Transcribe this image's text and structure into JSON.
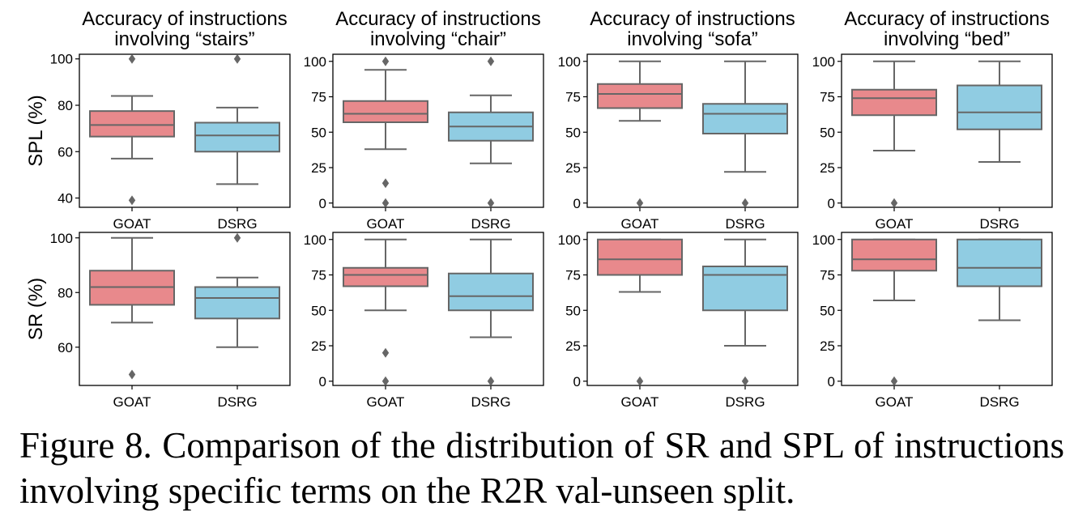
{
  "chart_data": {
    "type": "box",
    "categories": [
      "GOAT",
      "DSRG"
    ],
    "colors": {
      "GOAT": "#E8898C",
      "DSRG": "#90CCE2",
      "outline": "#666666"
    },
    "columns": [
      {
        "title_line1": "Accuracy of instructions",
        "title_line2": "involving “stairs”"
      },
      {
        "title_line1": "Accuracy of instructions",
        "title_line2": "involving “chair”"
      },
      {
        "title_line1": "Accuracy of instructions",
        "title_line2": "involving “sofa”"
      },
      {
        "title_line1": "Accuracy of instructions",
        "title_line2": "involving “bed”"
      }
    ],
    "rows": [
      {
        "ylabel": "SPL (%)",
        "panels": [
          {
            "ylim": [
              36,
              102
            ],
            "yticks": [
              "40",
              "60",
              "80",
              "100"
            ],
            "tick_values": [
              40,
              60,
              80,
              100
            ],
            "boxes": [
              {
                "q1": 66.5,
                "median": 71.5,
                "q3": 77.5,
                "whislo": 57,
                "whishi": 84,
                "fliers": [
                  39,
                  100
                ]
              },
              {
                "q1": 60,
                "median": 67,
                "q3": 72.5,
                "whislo": 46,
                "whishi": 79,
                "fliers": [
                  100
                ]
              }
            ]
          },
          {
            "ylim": [
              -3,
              105
            ],
            "yticks": [
              "0",
              "25",
              "50",
              "75",
              "100"
            ],
            "tick_values": [
              0,
              25,
              50,
              75,
              100
            ],
            "boxes": [
              {
                "q1": 57,
                "median": 63,
                "q3": 72,
                "whislo": 38,
                "whishi": 94,
                "fliers": [
                  0,
                  14,
                  100
                ]
              },
              {
                "q1": 44,
                "median": 54,
                "q3": 64,
                "whislo": 28,
                "whishi": 76,
                "fliers": [
                  0,
                  100
                ]
              }
            ]
          },
          {
            "ylim": [
              -3,
              105
            ],
            "yticks": [
              "0",
              "25",
              "50",
              "75",
              "100"
            ],
            "tick_values": [
              0,
              25,
              50,
              75,
              100
            ],
            "boxes": [
              {
                "q1": 67,
                "median": 77,
                "q3": 84,
                "whislo": 58,
                "whishi": 100,
                "fliers": [
                  0
                ]
              },
              {
                "q1": 49,
                "median": 63,
                "q3": 70,
                "whislo": 22,
                "whishi": 100,
                "fliers": [
                  0
                ]
              }
            ]
          },
          {
            "ylim": [
              -3,
              105
            ],
            "yticks": [
              "0",
              "25",
              "50",
              "75",
              "100"
            ],
            "tick_values": [
              0,
              25,
              50,
              75,
              100
            ],
            "boxes": [
              {
                "q1": 62,
                "median": 74,
                "q3": 80,
                "whislo": 37,
                "whishi": 100,
                "fliers": [
                  0
                ]
              },
              {
                "q1": 52,
                "median": 64,
                "q3": 83,
                "whislo": 29,
                "whishi": 100,
                "fliers": []
              }
            ]
          }
        ]
      },
      {
        "ylabel": "SR (%)",
        "panels": [
          {
            "ylim": [
              46,
              102
            ],
            "yticks": [
              "60",
              "80",
              "100"
            ],
            "tick_values": [
              60,
              80,
              100
            ],
            "boxes": [
              {
                "q1": 75.5,
                "median": 82,
                "q3": 88,
                "whislo": 69,
                "whishi": 100,
                "fliers": [
                  50
                ]
              },
              {
                "q1": 70.5,
                "median": 78,
                "q3": 82,
                "whislo": 60,
                "whishi": 85.5,
                "fliers": [
                  100
                ]
              }
            ]
          },
          {
            "ylim": [
              -3,
              105
            ],
            "yticks": [
              "0",
              "25",
              "50",
              "75",
              "100"
            ],
            "tick_values": [
              0,
              25,
              50,
              75,
              100
            ],
            "boxes": [
              {
                "q1": 67,
                "median": 75,
                "q3": 80,
                "whislo": 50,
                "whishi": 100,
                "fliers": [
                  0,
                  20
                ]
              },
              {
                "q1": 50,
                "median": 60,
                "q3": 76,
                "whislo": 31,
                "whishi": 100,
                "fliers": [
                  0
                ]
              }
            ]
          },
          {
            "ylim": [
              -3,
              105
            ],
            "yticks": [
              "0",
              "25",
              "50",
              "75",
              "100"
            ],
            "tick_values": [
              0,
              25,
              50,
              75,
              100
            ],
            "boxes": [
              {
                "q1": 75,
                "median": 86,
                "q3": 100,
                "whislo": 63,
                "whishi": 100,
                "fliers": [
                  0
                ]
              },
              {
                "q1": 50,
                "median": 75,
                "q3": 81,
                "whislo": 25,
                "whishi": 100,
                "fliers": [
                  0
                ]
              }
            ]
          },
          {
            "ylim": [
              -3,
              105
            ],
            "yticks": [
              "0",
              "25",
              "50",
              "75",
              "100"
            ],
            "tick_values": [
              0,
              25,
              50,
              75,
              100
            ],
            "boxes": [
              {
                "q1": 78,
                "median": 86,
                "q3": 100,
                "whislo": 57,
                "whishi": 100,
                "fliers": [
                  0
                ]
              },
              {
                "q1": 67,
                "median": 80,
                "q3": 100,
                "whislo": 43,
                "whishi": 100,
                "fliers": []
              }
            ]
          }
        ]
      }
    ]
  },
  "caption": "Figure 8. Comparison of the distribution of SR and SPL of instructions involving specific terms on the R2R val-unseen split."
}
